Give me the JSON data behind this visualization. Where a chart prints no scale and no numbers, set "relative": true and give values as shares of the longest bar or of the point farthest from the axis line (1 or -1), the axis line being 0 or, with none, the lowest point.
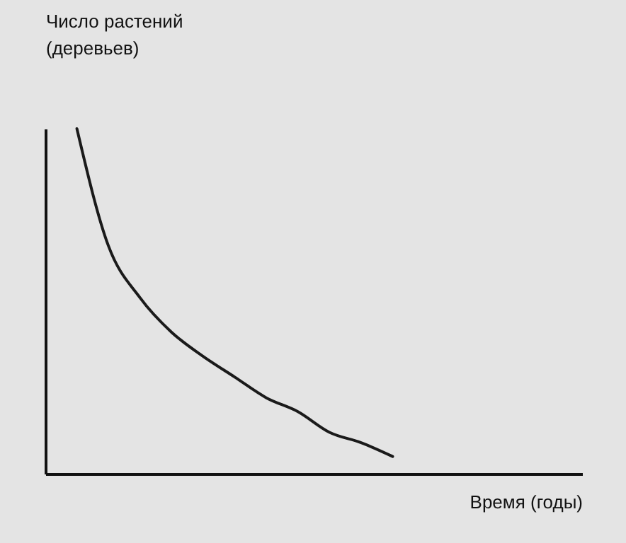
{
  "chart_data": {
    "type": "line",
    "relative": true,
    "xlabel": "Время (годы)",
    "ylabel": "Число растений\n(деревьев)",
    "categories": [
      null,
      null,
      null,
      null,
      null,
      null,
      null,
      null,
      null,
      null,
      null,
      null,
      null,
      null,
      null,
      null,
      null,
      null
    ],
    "series": [
      {
        "color": "#1a1a1a",
        "values": [
          null,
          1,
          0.66,
          0.51,
          0.41,
          0.34,
          0.28,
          0.22,
          0.18,
          0.12,
          0.09,
          0.05,
          null,
          null,
          null,
          null,
          null,
          null
        ]
      }
    ],
    "marker": "none",
    "line_style": "solid",
    "grid": false
  }
}
